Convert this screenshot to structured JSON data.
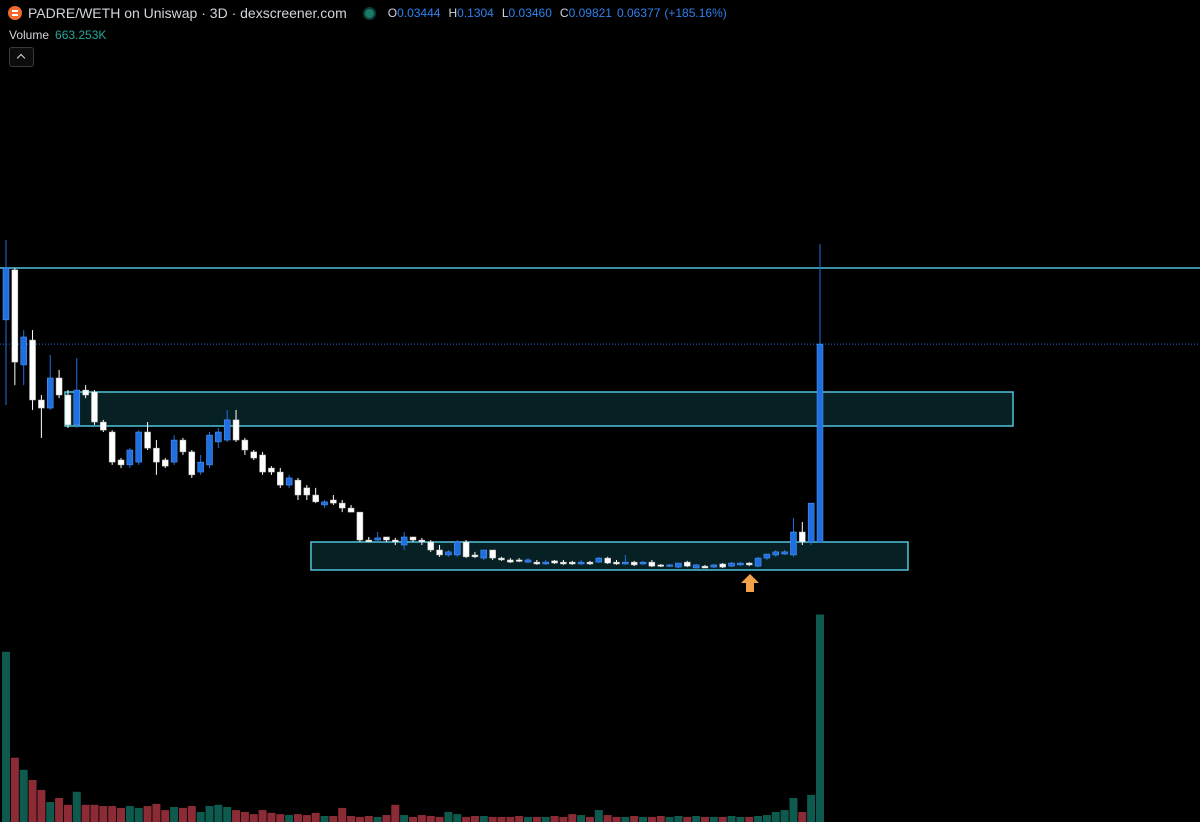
{
  "header": {
    "title": "PADRE/WETH on Uniswap · 3D · dexscreener.com",
    "o_label": "O",
    "open": "0.03444",
    "h_label": "H",
    "high": "0.1304",
    "l_label": "L",
    "low": "0.03460",
    "c_label": "C",
    "close": "0.09821",
    "change": "0.06377",
    "change_pct": "(+185.16%)",
    "volume_label": "Volume",
    "volume": "663.253K"
  },
  "chart_data": {
    "type": "candlestick",
    "ohlc": [
      [
        0.106,
        0.1317,
        0.0786,
        0.1227
      ],
      [
        0.1221,
        0.1227,
        0.085,
        0.0924
      ],
      [
        0.0915,
        0.1027,
        0.085,
        0.1005
      ],
      [
        0.0995,
        0.1027,
        0.077,
        0.0802
      ],
      [
        0.0802,
        0.0818,
        0.068,
        0.0776
      ],
      [
        0.0776,
        0.0947,
        0.077,
        0.0873
      ],
      [
        0.0873,
        0.0899,
        0.0808,
        0.0818
      ],
      [
        0.0818,
        0.0834,
        0.0712,
        0.0722
      ],
      [
        0.0722,
        0.0937,
        0.0712,
        0.0834
      ],
      [
        0.0834,
        0.085,
        0.0808,
        0.0818
      ],
      [
        0.0828,
        0.0834,
        0.0722,
        0.0731
      ],
      [
        0.0731,
        0.0738,
        0.0699,
        0.0705
      ],
      [
        0.0699,
        0.0705,
        0.0593,
        0.0602
      ],
      [
        0.0609,
        0.0615,
        0.0583,
        0.0593
      ],
      [
        0.0593,
        0.0647,
        0.0583,
        0.0641
      ],
      [
        0.0602,
        0.0705,
        0.0593,
        0.0699
      ],
      [
        0.0699,
        0.0731,
        0.0641,
        0.0647
      ],
      [
        0.0647,
        0.0673,
        0.0561,
        0.0602
      ],
      [
        0.0609,
        0.0615,
        0.0583,
        0.0589
      ],
      [
        0.0602,
        0.0689,
        0.0593,
        0.0673
      ],
      [
        0.0673,
        0.068,
        0.0625,
        0.0635
      ],
      [
        0.0635,
        0.0641,
        0.0551,
        0.0561
      ],
      [
        0.057,
        0.0625,
        0.0561,
        0.0602
      ],
      [
        0.0593,
        0.0699,
        0.0583,
        0.0689
      ],
      [
        0.0667,
        0.0712,
        0.0647,
        0.0699
      ],
      [
        0.0673,
        0.077,
        0.0667,
        0.0738
      ],
      [
        0.0738,
        0.077,
        0.0667,
        0.0673
      ],
      [
        0.0673,
        0.068,
        0.0625,
        0.0641
      ],
      [
        0.0635,
        0.0641,
        0.0609,
        0.0615
      ],
      [
        0.0625,
        0.0635,
        0.0561,
        0.057
      ],
      [
        0.0583,
        0.0589,
        0.0561,
        0.057
      ],
      [
        0.057,
        0.0583,
        0.0519,
        0.0528
      ],
      [
        0.0528,
        0.0561,
        0.0519,
        0.0551
      ],
      [
        0.0544,
        0.0551,
        0.048,
        0.0496
      ],
      [
        0.0519,
        0.0528,
        0.048,
        0.0496
      ],
      [
        0.0496,
        0.0519,
        0.047,
        0.0474
      ],
      [
        0.0464,
        0.048,
        0.0454,
        0.0474
      ],
      [
        0.048,
        0.0496,
        0.0464,
        0.047
      ],
      [
        0.047,
        0.048,
        0.0441,
        0.0454
      ],
      [
        0.0454,
        0.0464,
        0.0441,
        0.0441
      ],
      [
        0.0441,
        0.0441,
        0.0345,
        0.0351
      ],
      [
        0.0351,
        0.0361,
        0.0345,
        0.0345
      ],
      [
        0.0351,
        0.0377,
        0.0345,
        0.0358
      ],
      [
        0.0361,
        0.0361,
        0.0345,
        0.0351
      ],
      [
        0.0351,
        0.0358,
        0.0335,
        0.0345
      ],
      [
        0.0335,
        0.0377,
        0.0319,
        0.0361
      ],
      [
        0.0361,
        0.0361,
        0.0345,
        0.0351
      ],
      [
        0.0351,
        0.0358,
        0.0335,
        0.0345
      ],
      [
        0.0345,
        0.0351,
        0.0313,
        0.0319
      ],
      [
        0.0319,
        0.0335,
        0.0297,
        0.0303
      ],
      [
        0.0303,
        0.0319,
        0.0297,
        0.0313
      ],
      [
        0.0303,
        0.0351,
        0.0297,
        0.0345
      ],
      [
        0.0345,
        0.0351,
        0.0293,
        0.0297
      ],
      [
        0.0303,
        0.0313,
        0.0293,
        0.0297
      ],
      [
        0.0293,
        0.0319,
        0.0287,
        0.0319
      ],
      [
        0.0319,
        0.0319,
        0.0287,
        0.0293
      ],
      [
        0.0293,
        0.0297,
        0.0284,
        0.0287
      ],
      [
        0.0287,
        0.0293,
        0.0277,
        0.028
      ],
      [
        0.0287,
        0.0293,
        0.028,
        0.0284
      ],
      [
        0.028,
        0.0293,
        0.0277,
        0.0287
      ],
      [
        0.028,
        0.0287,
        0.0271,
        0.0274
      ],
      [
        0.0274,
        0.0287,
        0.0271,
        0.028
      ],
      [
        0.0284,
        0.0287,
        0.0274,
        0.0277
      ],
      [
        0.028,
        0.0287,
        0.0271,
        0.0274
      ],
      [
        0.028,
        0.0284,
        0.0271,
        0.0274
      ],
      [
        0.0274,
        0.0287,
        0.0271,
        0.028
      ],
      [
        0.028,
        0.0284,
        0.0271,
        0.0274
      ],
      [
        0.028,
        0.0297,
        0.0277,
        0.0293
      ],
      [
        0.0293,
        0.0297,
        0.0274,
        0.0277
      ],
      [
        0.028,
        0.0287,
        0.0271,
        0.0274
      ],
      [
        0.0274,
        0.0303,
        0.0271,
        0.028
      ],
      [
        0.028,
        0.0284,
        0.0267,
        0.0271
      ],
      [
        0.0274,
        0.0284,
        0.0271,
        0.028
      ],
      [
        0.028,
        0.0287,
        0.0264,
        0.0267
      ],
      [
        0.0271,
        0.0274,
        0.0264,
        0.0267
      ],
      [
        0.0267,
        0.0274,
        0.0264,
        0.0271
      ],
      [
        0.0264,
        0.0277,
        0.0261,
        0.0277
      ],
      [
        0.028,
        0.0284,
        0.0264,
        0.0267
      ],
      [
        0.0261,
        0.0274,
        0.0261,
        0.0271
      ],
      [
        0.0267,
        0.0271,
        0.0261,
        0.0261
      ],
      [
        0.0264,
        0.0274,
        0.0261,
        0.0271
      ],
      [
        0.0274,
        0.0277,
        0.0261,
        0.0264
      ],
      [
        0.0267,
        0.028,
        0.0264,
        0.0277
      ],
      [
        0.0271,
        0.028,
        0.0267,
        0.0277
      ],
      [
        0.0277,
        0.028,
        0.0267,
        0.0271
      ],
      [
        0.0267,
        0.0297,
        0.0264,
        0.0293
      ],
      [
        0.0293,
        0.0306,
        0.0287,
        0.0306
      ],
      [
        0.0303,
        0.0319,
        0.0297,
        0.0313
      ],
      [
        0.0306,
        0.0319,
        0.0303,
        0.0313
      ],
      [
        0.0303,
        0.0422,
        0.0297,
        0.0377
      ],
      [
        0.0377,
        0.0409,
        0.0335,
        0.0345
      ],
      [
        0.0345,
        0.047,
        0.0335,
        0.047
      ],
      [
        0.03444,
        0.1304,
        0.0346,
        0.09821
      ]
    ],
    "volume": [
      543000,
      201000,
      162000,
      129000,
      97000,
      58000,
      71000,
      49000,
      91000,
      49000,
      49000,
      45000,
      45000,
      39000,
      45000,
      39000,
      45000,
      52000,
      32000,
      42000,
      39000,
      45000,
      26000,
      45000,
      49000,
      42000,
      32000,
      26000,
      19000,
      32000,
      23000,
      19000,
      16000,
      19000,
      16000,
      23000,
      13000,
      13000,
      39000,
      13000,
      10000,
      13000,
      10000,
      16000,
      49000,
      16000,
      10000,
      16000,
      13000,
      10000,
      26000,
      19000,
      10000,
      13000,
      13000,
      10000,
      10000,
      10000,
      13000,
      10000,
      10000,
      10000,
      13000,
      10000,
      19000,
      16000,
      10000,
      32000,
      16000,
      10000,
      10000,
      13000,
      10000,
      10000,
      13000,
      10000,
      13000,
      10000,
      13000,
      10000,
      10000,
      10000,
      13000,
      10000,
      10000,
      13000,
      16000,
      26000,
      32000,
      71000,
      26000,
      81000,
      663253
    ],
    "ylim": [
      0.0158,
      0.209
    ],
    "volume_lim": [
      0,
      710000
    ],
    "up_color": "#1f6fe0",
    "down_color": "#ffffff",
    "volume_up_color": "#0e5a4f",
    "volume_down_color": "#8a2b36"
  }
}
